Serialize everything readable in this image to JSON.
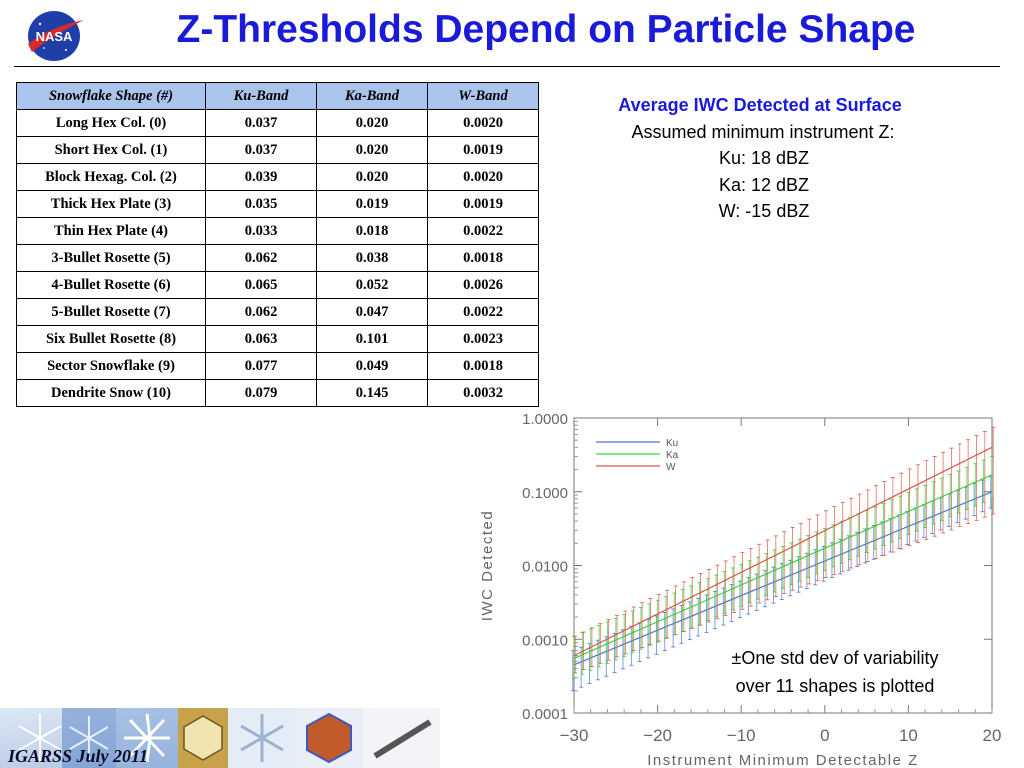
{
  "slide": {
    "title": "Z-Thresholds Depend on Particle Shape",
    "logo_text": "NASA",
    "footer": "IGARSS July 2011"
  },
  "table": {
    "headers": [
      "Snowflake Shape (#)",
      "Ku-Band",
      "Ka-Band",
      "W-Band"
    ],
    "rows": [
      [
        "Long Hex Col. (0)",
        "0.037",
        "0.020",
        "0.0020"
      ],
      [
        "Short Hex Col. (1)",
        "0.037",
        "0.020",
        "0.0019"
      ],
      [
        "Block Hexag. Col. (2)",
        "0.039",
        "0.020",
        "0.0020"
      ],
      [
        "Thick Hex Plate (3)",
        "0.035",
        "0.019",
        "0.0019"
      ],
      [
        "Thin Hex Plate (4)",
        "0.033",
        "0.018",
        "0.0022"
      ],
      [
        "3-Bullet Rosette (5)",
        "0.062",
        "0.038",
        "0.0018"
      ],
      [
        "4-Bullet Rosette (6)",
        "0.065",
        "0.052",
        "0.0026"
      ],
      [
        "5-Bullet Rosette (7)",
        "0.062",
        "0.047",
        "0.0022"
      ],
      [
        "Six Bullet Rosette (8)",
        "0.063",
        "0.101",
        "0.0023"
      ],
      [
        "Sector Snowflake (9)",
        "0.077",
        "0.049",
        "0.0018"
      ],
      [
        "Dendrite Snow (10)",
        "0.079",
        "0.145",
        "0.0032"
      ]
    ]
  },
  "side_panel": {
    "heading": "Average IWC Detected at Surface",
    "assumed": "Assumed minimum instrument Z:",
    "lines": [
      "Ku: 18 dBZ",
      "Ka: 12 dBZ",
      "W: -15 dBZ"
    ]
  },
  "note": {
    "line1": "±One std dev of variability",
    "line2": "over 11 shapes is plotted"
  },
  "colors": {
    "title": "#1a1adb",
    "header_fill": "#aac4ec",
    "ku": "#4a74d8",
    "ka": "#38d838",
    "w": "#d85a4a"
  },
  "chart_data": {
    "type": "line",
    "xlabel": "Instrument Minimum Detectable Z",
    "ylabel": "IWC Detected",
    "xlim": [
      -30,
      20
    ],
    "ylim": [
      0.0001,
      1.0
    ],
    "yscale": "log",
    "xticks": [
      -30,
      -20,
      -10,
      0,
      10,
      20
    ],
    "xtick_labels": [
      "−30",
      "−20",
      "−10",
      "0",
      "10",
      "20"
    ],
    "yticks": [
      0.0001,
      0.001,
      0.01,
      0.1,
      1.0
    ],
    "ytick_labels": [
      "0.0001",
      "0.0010",
      "0.0100",
      "0.1000",
      "1.0000"
    ],
    "legend_position": "top-left",
    "series": [
      {
        "name": "Ku",
        "color": "#4a74d8",
        "x": [
          -30,
          20
        ],
        "y": [
          0.00045,
          0.1
        ],
        "err_x": [
          -30,
          20
        ],
        "err_lo": [
          0.0002,
          0.06
        ],
        "err_hi": [
          0.0007,
          0.16
        ]
      },
      {
        "name": "Ka",
        "color": "#38d838",
        "x": [
          -30,
          20
        ],
        "y": [
          0.00055,
          0.17
        ],
        "err_x": [
          -30,
          20
        ],
        "err_lo": [
          0.0003,
          0.08
        ],
        "err_hi": [
          0.0011,
          0.3
        ]
      },
      {
        "name": "W",
        "color": "#d85a4a",
        "x": [
          -30,
          20
        ],
        "y": [
          0.0006,
          0.4
        ],
        "err_x": [
          -30,
          20
        ],
        "err_lo": [
          0.00035,
          0.05
        ],
        "err_hi": [
          0.0011,
          0.75
        ]
      }
    ]
  }
}
